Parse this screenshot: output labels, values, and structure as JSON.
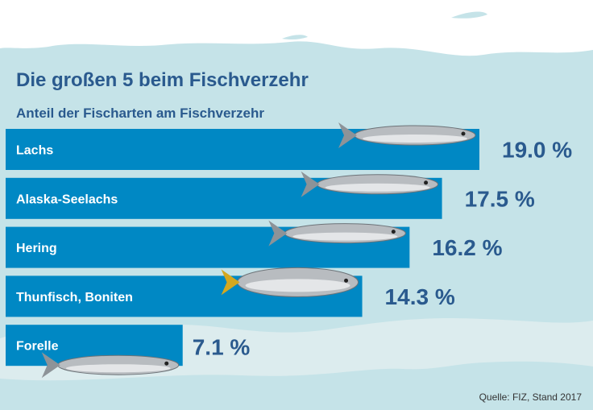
{
  "colors": {
    "bar": "#0088c4",
    "background": "#c5e3e8",
    "text": "#2a5a8e",
    "label": "#ffffff"
  },
  "chart_data": {
    "type": "bar",
    "orientation": "horizontal",
    "title": "Die großen 5 beim Fischverzehr",
    "subtitle": "Anteil der Fischarten am Fischverzehr",
    "categories": [
      "Lachs",
      "Alaska-Seelachs",
      "Hering",
      "Thunfisch, Boniten",
      "Forelle"
    ],
    "values": [
      19.0,
      17.5,
      16.2,
      14.3,
      7.1
    ],
    "value_labels": [
      "19.0 %",
      "17.5 %",
      "16.2 %",
      "14.3 %",
      "7.1 %"
    ],
    "xlim": [
      0,
      19.0
    ],
    "grid": false
  },
  "source": "Quelle: FIZ, Stand 2017"
}
